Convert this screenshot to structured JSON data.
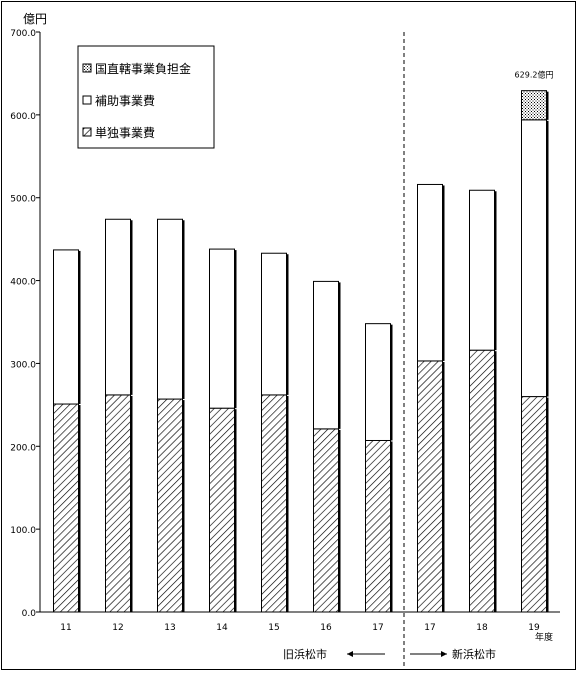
{
  "chart_data": {
    "type": "bar",
    "stacked": true,
    "ylabel": "億円",
    "xlabel": "年度",
    "ylim": [
      0,
      700
    ],
    "yticks": [
      "0.0",
      "100.0",
      "200.0",
      "300.0",
      "400.0",
      "500.0",
      "600.0",
      "700.0"
    ],
    "categories": [
      "11",
      "12",
      "13",
      "14",
      "15",
      "16",
      "17",
      "17",
      "18",
      "19"
    ],
    "series": [
      {
        "name": "単独事業費",
        "pattern": "diagonal-hatch",
        "values": [
          251,
          262,
          257,
          246,
          262,
          221,
          207,
          303,
          316,
          260
        ]
      },
      {
        "name": "補助事業費",
        "pattern": "white",
        "values": [
          186,
          212,
          217,
          192,
          171,
          178,
          141,
          213,
          193,
          334
        ]
      },
      {
        "name": "国直轄事業負担金",
        "pattern": "dotted",
        "values": [
          0,
          0,
          0,
          0,
          0,
          0,
          0,
          0,
          0,
          35.2
        ]
      }
    ],
    "legend_position": "top-left",
    "annotations": [
      {
        "text": "629.2億円",
        "category_index": 9
      }
    ],
    "groups": [
      {
        "label": "旧浜松市",
        "arrow": "←",
        "category_range": [
          0,
          6
        ]
      },
      {
        "label": "新浜松市",
        "arrow": "→",
        "category_range": [
          7,
          9
        ]
      }
    ],
    "divider_after_index": 6
  }
}
